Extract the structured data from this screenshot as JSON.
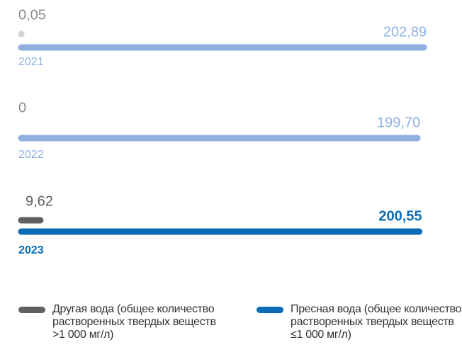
{
  "chart_data": {
    "type": "bar",
    "orientation": "horizontal",
    "categories": [
      "2021",
      "2022",
      "2023"
    ],
    "category_colors": [
      "#8fb0de",
      "#8fb0de",
      "#0a6cb5"
    ],
    "series": [
      {
        "name": "Другая вода (общее количество растворенных твердых веществ >1 000 мг/л)",
        "color": "#5f6062",
        "colors": [
          "#d3d3d3",
          "#d3d3d3",
          "#5f6062"
        ],
        "label_colors": [
          "#8c8c8c",
          "#8c8c8c",
          "#5f6062"
        ],
        "values": [
          0.05,
          0,
          9.62
        ],
        "value_labels": [
          "0,05",
          "0",
          "9,62"
        ]
      },
      {
        "name": "Пресная вода (общее количество растворенных твердых веществ ≤1 000 мг/л)",
        "color": "#0a6cb5",
        "colors": [
          "#8fb0de",
          "#8fb0de",
          "#0a6cb5"
        ],
        "label_colors": [
          "#8fb0de",
          "#8fb0de",
          "#0a6cb5"
        ],
        "values": [
          202.89,
          199.7,
          200.55
        ],
        "value_labels": [
          "202,89",
          "199,70",
          "200,55"
        ]
      }
    ],
    "bold_categories": [
      false,
      false,
      true
    ],
    "legend": "bottom"
  }
}
